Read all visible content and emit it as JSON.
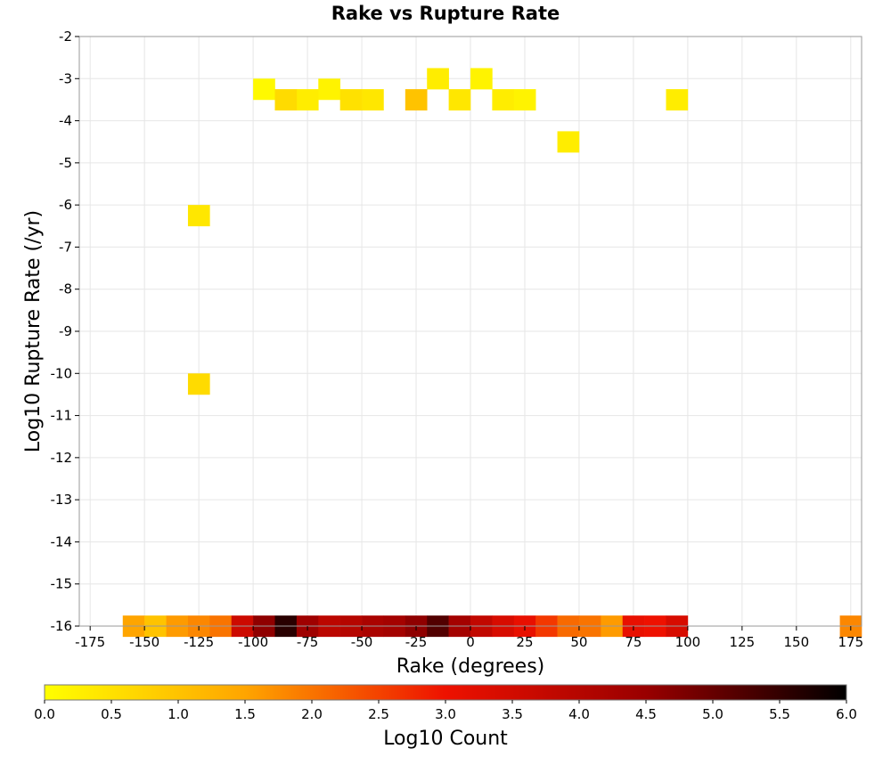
{
  "chart_data": {
    "type": "heatmap",
    "title": "Rake vs Rupture Rate",
    "xlabel": "Rake (degrees)",
    "ylabel": "Log10 Rupture Rate (/yr)",
    "xlim": [
      -180,
      180
    ],
    "ylim": [
      -16,
      -2
    ],
    "xticks": [
      -175,
      -150,
      -125,
      -100,
      -75,
      -50,
      -25,
      0,
      25,
      50,
      75,
      100,
      125,
      150,
      175
    ],
    "yticks": [
      -2,
      -3,
      -4,
      -5,
      -6,
      -7,
      -8,
      -9,
      -10,
      -11,
      -12,
      -13,
      -14,
      -15,
      -16
    ],
    "grid": true,
    "bin_size": {
      "rake": 10,
      "log_rate": 0.5
    },
    "colorbar": {
      "label": "Log10 Count",
      "min": 0.0,
      "max": 6.0,
      "ticks": [
        "0.0",
        "0.5",
        "1.0",
        "1.5",
        "2.0",
        "2.5",
        "3.0",
        "3.5",
        "4.0",
        "4.5",
        "5.0",
        "5.5",
        "6.0"
      ],
      "colors": [
        "#ffff00",
        "#ffa500",
        "#ee1100",
        "#990000",
        "#000000"
      ]
    },
    "cells": [
      [
        -155,
        -16,
        1.5
      ],
      [
        -145,
        -16,
        1.0
      ],
      [
        -135,
        -16,
        1.6
      ],
      [
        -125,
        -16,
        1.8
      ],
      [
        -115,
        -16,
        2.0
      ],
      [
        -105,
        -16,
        3.6
      ],
      [
        -95,
        -16,
        4.6
      ],
      [
        -85,
        -16,
        5.6
      ],
      [
        -75,
        -16,
        4.4
      ],
      [
        -65,
        -16,
        3.9
      ],
      [
        -55,
        -16,
        4.0
      ],
      [
        -45,
        -16,
        4.2
      ],
      [
        -35,
        -16,
        4.3
      ],
      [
        -25,
        -16,
        4.6
      ],
      [
        -15,
        -16,
        5.2
      ],
      [
        -5,
        -16,
        4.3
      ],
      [
        5,
        -16,
        3.8
      ],
      [
        15,
        -16,
        3.4
      ],
      [
        25,
        -16,
        3.1
      ],
      [
        35,
        -16,
        2.6
      ],
      [
        45,
        -16,
        2.1
      ],
      [
        55,
        -16,
        2.0
      ],
      [
        65,
        -16,
        1.6
      ],
      [
        75,
        -16,
        3.1
      ],
      [
        85,
        -16,
        3.0
      ],
      [
        95,
        -16,
        3.4
      ],
      [
        175,
        -16,
        1.8
      ],
      [
        -125,
        -6.25,
        0.4
      ],
      [
        -125,
        -10.25,
        0.6
      ],
      [
        -95,
        -3.25,
        0.1
      ],
      [
        -65,
        -3.25,
        0.2
      ],
      [
        -15,
        -3.0,
        0.3
      ],
      [
        5,
        -3.0,
        0.2
      ],
      [
        95,
        -3.5,
        0.3
      ],
      [
        -45,
        -3.5,
        0.4
      ],
      [
        -55,
        -3.5,
        0.5
      ],
      [
        -75,
        -3.5,
        0.3
      ],
      [
        -85,
        -3.5,
        0.6
      ],
      [
        -25,
        -3.5,
        1.0
      ],
      [
        -5,
        -3.5,
        0.4
      ],
      [
        15,
        -3.5,
        0.3
      ],
      [
        25,
        -3.5,
        0.2
      ],
      [
        45,
        -4.5,
        0.3
      ]
    ]
  }
}
